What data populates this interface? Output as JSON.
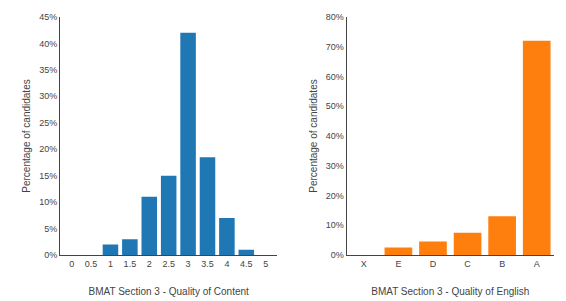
{
  "chart_data": [
    {
      "type": "bar",
      "xlabel": "BMAT Section 3 - Quality of Content",
      "ylabel": "Percentage of candidates",
      "x": [
        0,
        0.5,
        1,
        1.5,
        2,
        2.5,
        3,
        3.5,
        4,
        4.5,
        5
      ],
      "values": [
        0,
        0,
        0.02,
        0.03,
        0.11,
        0.15,
        0.42,
        0.185,
        0.07,
        0.01,
        0
      ],
      "xlim": [
        -0.3,
        5.3
      ],
      "xticks": [
        0,
        0.5,
        1,
        1.5,
        2,
        2.5,
        3,
        3.5,
        4,
        4.5,
        5
      ],
      "ylim": [
        0,
        0.45
      ],
      "yticks": [
        {
          "value": 0,
          "label": "0%"
        },
        {
          "value": 0.05,
          "label": "5%"
        },
        {
          "value": 0.1,
          "label": "10%"
        },
        {
          "value": 0.15,
          "label": "15%"
        },
        {
          "value": 0.2,
          "label": "20%"
        },
        {
          "value": 0.25,
          "label": "25%"
        },
        {
          "value": 0.3,
          "label": "30%"
        },
        {
          "value": 0.35,
          "label": "35%"
        },
        {
          "value": 0.4,
          "label": "40%"
        },
        {
          "value": 0.45,
          "label": "45%"
        }
      ],
      "grid": false
    },
    {
      "type": "bar",
      "xlabel": "BMAT Section 3 - Quality of English",
      "ylabel": "Percentage of candidates",
      "categories": [
        "X",
        "E",
        "D",
        "C",
        "B",
        "A"
      ],
      "values": [
        0,
        0.025,
        0.045,
        0.075,
        0.13,
        0.72
      ],
      "ylim": [
        0,
        0.8
      ],
      "yticks": [
        {
          "value": 0,
          "label": "0%"
        },
        {
          "value": 0.1,
          "label": "10%"
        },
        {
          "value": 0.2,
          "label": "20%"
        },
        {
          "value": 0.3,
          "label": "30%"
        },
        {
          "value": 0.4,
          "label": "40%"
        },
        {
          "value": 0.5,
          "label": "50%"
        },
        {
          "value": 0.6,
          "label": "60%"
        },
        {
          "value": 0.7,
          "label": "70%"
        },
        {
          "value": 0.8,
          "label": "80%"
        }
      ],
      "grid": false
    }
  ]
}
